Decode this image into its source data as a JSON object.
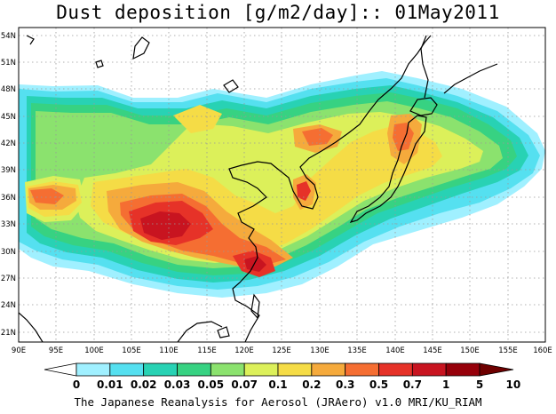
{
  "title": "Dust deposition [g/m2/day]:: 01May2011",
  "credit": "The Japanese Reanalysis for Aerosol (JRAero) v1.0 MRI/KU_RIAM",
  "lat_labels": [
    "54N",
    "51N",
    "48N",
    "45N",
    "42N",
    "39N",
    "36N",
    "33N",
    "30N",
    "27N",
    "24N",
    "21N"
  ],
  "lon_labels": [
    "90E",
    "95E",
    "100E",
    "105E",
    "110E",
    "115E",
    "120E",
    "125E",
    "130E",
    "135E",
    "140E",
    "145E",
    "150E",
    "155E",
    "160E"
  ],
  "colorbar": {
    "labels": [
      "0",
      "0.01",
      "0.02",
      "0.03",
      "0.05",
      "0.07",
      "0.1",
      "0.2",
      "0.3",
      "0.5",
      "0.7",
      "1",
      "5",
      "10"
    ],
    "colors": [
      "#ffffff",
      "#a0f0ff",
      "#55e0f0",
      "#28d2b4",
      "#37d282",
      "#8be26e",
      "#dcf05a",
      "#f5dc46",
      "#f5aa3c",
      "#f56e32",
      "#e63228",
      "#c81420",
      "#96000a",
      "#6e0000"
    ]
  },
  "map": {
    "extent": {
      "lon": [
        90,
        160
      ],
      "lat": [
        20,
        55
      ]
    },
    "field": "dust deposition",
    "units": "g/m2/day",
    "date": "01May2011"
  }
}
